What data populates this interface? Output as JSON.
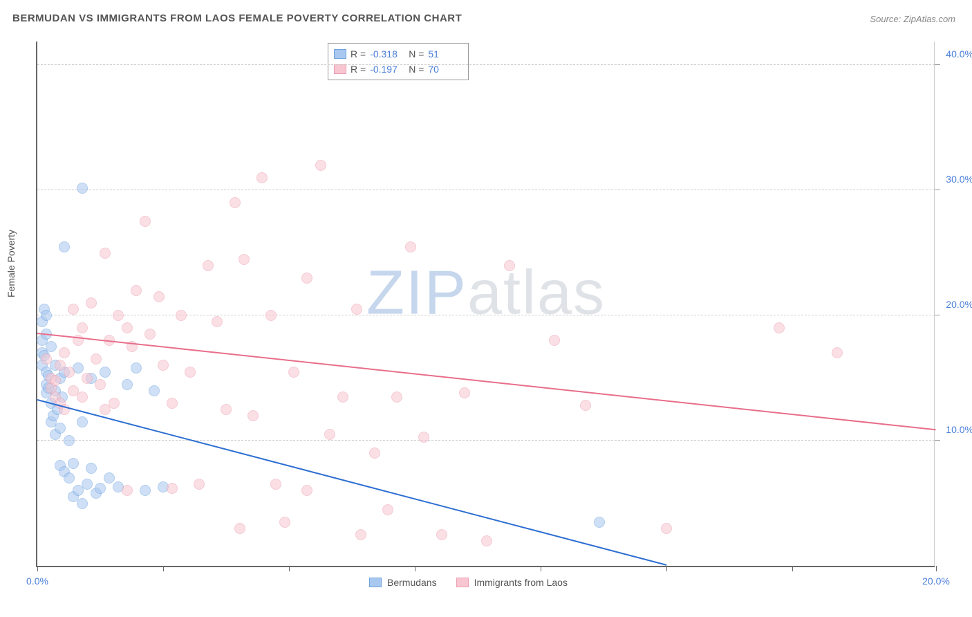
{
  "title": "BERMUDAN VS IMMIGRANTS FROM LAOS FEMALE POVERTY CORRELATION CHART",
  "source": "Source: ZipAtlas.com",
  "ylabel": "Female Poverty",
  "watermark": {
    "part1": "ZIP",
    "part2": "atlas"
  },
  "chart": {
    "type": "scatter",
    "background_color": "#ffffff",
    "grid_color": "#cccccc",
    "axis_color": "#666666",
    "tick_label_color": "#4a7fd8",
    "xlim": [
      0,
      20
    ],
    "ylim": [
      0,
      42
    ],
    "xtick_positions": [
      0,
      2.8,
      5.6,
      8.4,
      11.2,
      14.0,
      16.8,
      20.0
    ],
    "xtick_labels": {
      "0": "0.0%",
      "20": "20.0%"
    },
    "ytick_positions": [
      10,
      20,
      30,
      40
    ],
    "ytick_labels": {
      "10": "10.0%",
      "20": "20.0%",
      "30": "30.0%",
      "40": "40.0%"
    },
    "marker_radius": 8,
    "marker_opacity": 0.55,
    "marker_border_width": 1.5,
    "trendline_width": 2
  },
  "series": [
    {
      "name": "Bermudans",
      "fill_color": "#a8c8f0",
      "border_color": "#6fa3e0",
      "line_color": "#2e6fd1",
      "R": "-0.318",
      "N": "51",
      "trend": {
        "x1": 0,
        "y1": 13.2,
        "x2": 14.0,
        "y2": 0
      },
      "points": [
        [
          0.1,
          19.5
        ],
        [
          0.1,
          18.0
        ],
        [
          0.1,
          17.0
        ],
        [
          0.1,
          16.0
        ],
        [
          0.15,
          20.5
        ],
        [
          0.2,
          20.0
        ],
        [
          0.2,
          15.5
        ],
        [
          0.2,
          14.5
        ],
        [
          0.2,
          13.8
        ],
        [
          0.25,
          15.2
        ],
        [
          0.3,
          13.0
        ],
        [
          0.3,
          17.5
        ],
        [
          0.3,
          11.5
        ],
        [
          0.35,
          12.0
        ],
        [
          0.4,
          16.0
        ],
        [
          0.4,
          10.5
        ],
        [
          0.4,
          14.0
        ],
        [
          0.5,
          11.0
        ],
        [
          0.5,
          15.0
        ],
        [
          0.5,
          8.0
        ],
        [
          0.6,
          7.5
        ],
        [
          0.6,
          15.5
        ],
        [
          0.7,
          7.0
        ],
        [
          0.7,
          10.0
        ],
        [
          0.8,
          5.5
        ],
        [
          0.8,
          8.2
        ],
        [
          0.9,
          6.0
        ],
        [
          0.9,
          15.8
        ],
        [
          1.0,
          5.0
        ],
        [
          1.0,
          11.5
        ],
        [
          1.1,
          6.5
        ],
        [
          1.2,
          7.8
        ],
        [
          1.2,
          15.0
        ],
        [
          1.3,
          5.8
        ],
        [
          1.4,
          6.2
        ],
        [
          1.5,
          15.5
        ],
        [
          1.6,
          7.0
        ],
        [
          1.8,
          6.3
        ],
        [
          2.0,
          14.5
        ],
        [
          2.2,
          15.8
        ],
        [
          2.4,
          6.0
        ],
        [
          2.6,
          14.0
        ],
        [
          2.8,
          6.3
        ],
        [
          1.0,
          30.2
        ],
        [
          0.6,
          25.5
        ],
        [
          0.2,
          18.5
        ],
        [
          0.15,
          16.8
        ],
        [
          0.25,
          14.2
        ],
        [
          0.45,
          12.5
        ],
        [
          0.55,
          13.5
        ],
        [
          12.5,
          3.5
        ]
      ]
    },
    {
      "name": "Immigrants from Laos",
      "fill_color": "#f7c6d0",
      "border_color": "#ec9fb2",
      "line_color": "#e86e8a",
      "R": "-0.197",
      "N": "70",
      "trend": {
        "x1": 0,
        "y1": 18.5,
        "x2": 20.0,
        "y2": 10.8
      },
      "points": [
        [
          0.2,
          16.5
        ],
        [
          0.3,
          15.0
        ],
        [
          0.3,
          14.2
        ],
        [
          0.4,
          14.8
        ],
        [
          0.4,
          13.5
        ],
        [
          0.5,
          16.0
        ],
        [
          0.5,
          13.0
        ],
        [
          0.6,
          17.0
        ],
        [
          0.6,
          12.5
        ],
        [
          0.7,
          15.5
        ],
        [
          0.8,
          20.5
        ],
        [
          0.8,
          14.0
        ],
        [
          0.9,
          18.0
        ],
        [
          1.0,
          13.5
        ],
        [
          1.0,
          19.0
        ],
        [
          1.1,
          15.0
        ],
        [
          1.2,
          21.0
        ],
        [
          1.3,
          16.5
        ],
        [
          1.4,
          14.5
        ],
        [
          1.5,
          25.0
        ],
        [
          1.6,
          18.0
        ],
        [
          1.7,
          13.0
        ],
        [
          1.8,
          20.0
        ],
        [
          2.0,
          19.0
        ],
        [
          2.1,
          17.5
        ],
        [
          2.2,
          22.0
        ],
        [
          2.4,
          27.5
        ],
        [
          2.5,
          18.5
        ],
        [
          2.7,
          21.5
        ],
        [
          2.8,
          16.0
        ],
        [
          3.0,
          13.0
        ],
        [
          3.2,
          20.0
        ],
        [
          3.4,
          15.5
        ],
        [
          3.6,
          6.5
        ],
        [
          3.8,
          24.0
        ],
        [
          4.0,
          19.5
        ],
        [
          4.2,
          12.5
        ],
        [
          4.4,
          29.0
        ],
        [
          4.6,
          24.5
        ],
        [
          4.8,
          12.0
        ],
        [
          5.0,
          31.0
        ],
        [
          5.2,
          20.0
        ],
        [
          5.5,
          3.5
        ],
        [
          5.7,
          15.5
        ],
        [
          6.0,
          23.0
        ],
        [
          6.3,
          32.0
        ],
        [
          6.5,
          10.5
        ],
        [
          6.8,
          13.5
        ],
        [
          6.0,
          6.0
        ],
        [
          7.1,
          20.5
        ],
        [
          7.5,
          9.0
        ],
        [
          7.8,
          4.5
        ],
        [
          8.0,
          13.5
        ],
        [
          8.3,
          25.5
        ],
        [
          8.6,
          10.3
        ],
        [
          9.0,
          2.5
        ],
        [
          9.5,
          13.8
        ],
        [
          10.0,
          2.0
        ],
        [
          10.5,
          24.0
        ],
        [
          11.5,
          18.0
        ],
        [
          12.2,
          12.8
        ],
        [
          4.5,
          3.0
        ],
        [
          14.0,
          3.0
        ],
        [
          16.5,
          19.0
        ],
        [
          17.8,
          17.0
        ],
        [
          2.0,
          6.0
        ],
        [
          3.0,
          6.2
        ],
        [
          5.3,
          6.5
        ],
        [
          7.2,
          2.5
        ],
        [
          1.5,
          12.5
        ]
      ]
    }
  ],
  "stat_legend": {
    "R_label": "R =",
    "N_label": "N ="
  },
  "bottom_legend_labels": [
    "Bermudans",
    "Immigrants from Laos"
  ]
}
